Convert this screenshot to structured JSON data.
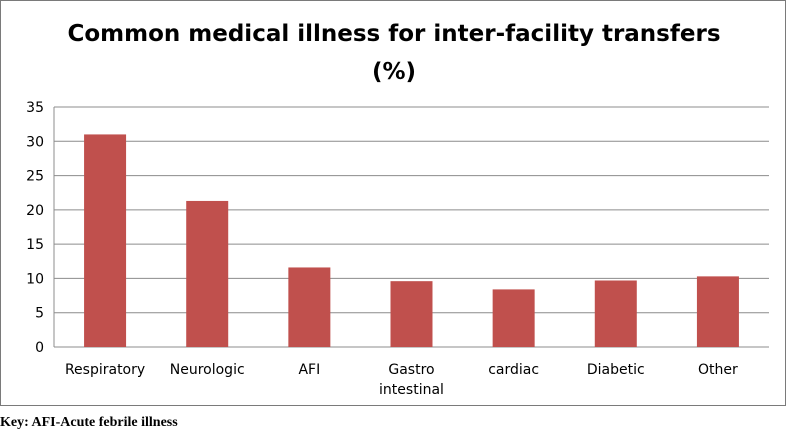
{
  "chart_data": {
    "type": "bar",
    "title": "Common medical illness for inter-facility transfers (%)",
    "title_lines": [
      "Common medical illness for inter-facility transfers",
      "(%)"
    ],
    "categories": [
      "Respiratory",
      "Neurologic",
      "AFI",
      "Gastro intestinal",
      "cardiac",
      "Diabetic",
      "Other"
    ],
    "category_lines": [
      [
        "Respiratory"
      ],
      [
        "Neurologic"
      ],
      [
        "AFI"
      ],
      [
        "Gastro",
        "intestinal"
      ],
      [
        "cardiac"
      ],
      [
        "Diabetic"
      ],
      [
        "Other"
      ]
    ],
    "values": [
      31.0,
      21.3,
      11.6,
      9.6,
      8.4,
      9.7,
      10.3
    ],
    "ylim": [
      0,
      35
    ],
    "yticks": [
      0,
      5,
      10,
      15,
      20,
      25,
      30,
      35
    ],
    "xlabel": "",
    "ylabel": "",
    "grid": true,
    "legend": "none",
    "bar_color": "#c0504d",
    "gridline_color": "#8c8c8c"
  },
  "footnote": "Key: AFI-Acute febrile illness"
}
